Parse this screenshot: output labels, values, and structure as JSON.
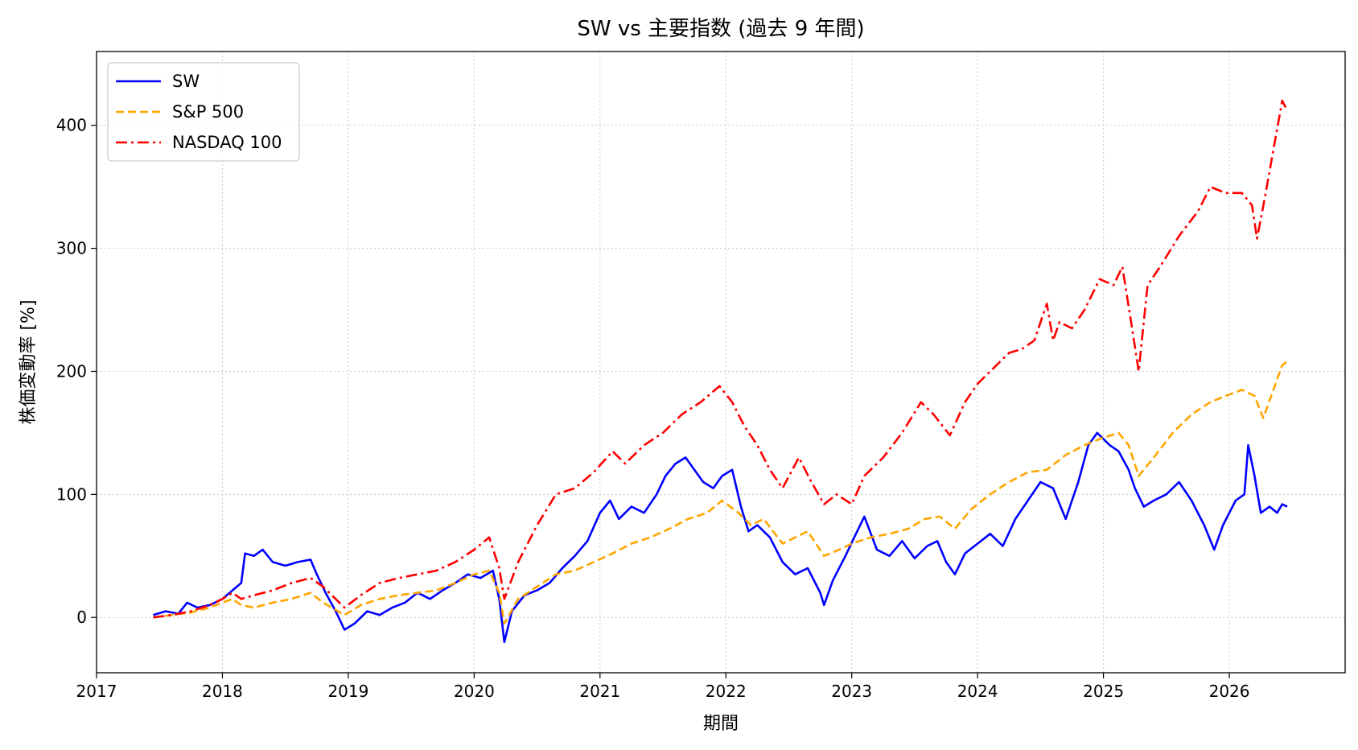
{
  "chart_data": {
    "type": "line",
    "title": "SW vs 主要指数 (過去 9 年間)",
    "xlabel": "期間",
    "ylabel": "株価変動率 [%]",
    "xlim": [
      2017.0,
      2026.92
    ],
    "ylim": [
      -45,
      460
    ],
    "x_ticks": [
      2017,
      2018,
      2019,
      2020,
      2021,
      2022,
      2023,
      2024,
      2025,
      2026
    ],
    "x_tick_labels": [
      "2017",
      "2018",
      "2019",
      "2020",
      "2021",
      "2022",
      "2023",
      "2024",
      "2025",
      "2026"
    ],
    "y_ticks": [
      0,
      100,
      200,
      300,
      400
    ],
    "y_tick_labels": [
      "0",
      "100",
      "200",
      "300",
      "400"
    ],
    "grid": true,
    "legend_position": "top-left",
    "series": [
      {
        "name": "SW",
        "color": "#0000ff",
        "dash": "solid",
        "points": [
          [
            2017.45,
            2
          ],
          [
            2017.55,
            5
          ],
          [
            2017.65,
            3
          ],
          [
            2017.72,
            12
          ],
          [
            2017.8,
            8
          ],
          [
            2017.9,
            10
          ],
          [
            2018.0,
            15
          ],
          [
            2018.08,
            22
          ],
          [
            2018.15,
            28
          ],
          [
            2018.18,
            52
          ],
          [
            2018.25,
            50
          ],
          [
            2018.32,
            55
          ],
          [
            2018.4,
            45
          ],
          [
            2018.5,
            42
          ],
          [
            2018.6,
            45
          ],
          [
            2018.7,
            47
          ],
          [
            2018.75,
            35
          ],
          [
            2018.82,
            20
          ],
          [
            2018.9,
            5
          ],
          [
            2018.97,
            -10
          ],
          [
            2019.05,
            -5
          ],
          [
            2019.15,
            5
          ],
          [
            2019.25,
            2
          ],
          [
            2019.35,
            8
          ],
          [
            2019.45,
            12
          ],
          [
            2019.55,
            20
          ],
          [
            2019.65,
            15
          ],
          [
            2019.75,
            22
          ],
          [
            2019.85,
            28
          ],
          [
            2019.95,
            35
          ],
          [
            2020.05,
            32
          ],
          [
            2020.15,
            38
          ],
          [
            2020.2,
            15
          ],
          [
            2020.24,
            -20
          ],
          [
            2020.3,
            5
          ],
          [
            2020.4,
            18
          ],
          [
            2020.5,
            22
          ],
          [
            2020.6,
            28
          ],
          [
            2020.7,
            40
          ],
          [
            2020.8,
            50
          ],
          [
            2020.9,
            62
          ],
          [
            2021.0,
            85
          ],
          [
            2021.08,
            95
          ],
          [
            2021.15,
            80
          ],
          [
            2021.25,
            90
          ],
          [
            2021.35,
            85
          ],
          [
            2021.45,
            100
          ],
          [
            2021.52,
            115
          ],
          [
            2021.6,
            125
          ],
          [
            2021.68,
            130
          ],
          [
            2021.75,
            120
          ],
          [
            2021.82,
            110
          ],
          [
            2021.9,
            105
          ],
          [
            2021.97,
            115
          ],
          [
            2022.05,
            120
          ],
          [
            2022.12,
            90
          ],
          [
            2022.18,
            70
          ],
          [
            2022.25,
            75
          ],
          [
            2022.35,
            65
          ],
          [
            2022.45,
            45
          ],
          [
            2022.55,
            35
          ],
          [
            2022.65,
            40
          ],
          [
            2022.75,
            20
          ],
          [
            2022.78,
            10
          ],
          [
            2022.85,
            30
          ],
          [
            2022.95,
            50
          ],
          [
            2023.02,
            65
          ],
          [
            2023.1,
            82
          ],
          [
            2023.2,
            55
          ],
          [
            2023.3,
            50
          ],
          [
            2023.4,
            62
          ],
          [
            2023.5,
            48
          ],
          [
            2023.6,
            58
          ],
          [
            2023.68,
            62
          ],
          [
            2023.75,
            45
          ],
          [
            2023.82,
            35
          ],
          [
            2023.9,
            52
          ],
          [
            2024.0,
            60
          ],
          [
            2024.1,
            68
          ],
          [
            2024.2,
            58
          ],
          [
            2024.3,
            80
          ],
          [
            2024.4,
            95
          ],
          [
            2024.5,
            110
          ],
          [
            2024.6,
            105
          ],
          [
            2024.7,
            80
          ],
          [
            2024.8,
            110
          ],
          [
            2024.88,
            140
          ],
          [
            2024.95,
            150
          ],
          [
            2025.05,
            140
          ],
          [
            2025.12,
            135
          ],
          [
            2025.2,
            120
          ],
          [
            2025.25,
            105
          ],
          [
            2025.32,
            90
          ],
          [
            2025.4,
            95
          ],
          [
            2025.5,
            100
          ],
          [
            2025.6,
            110
          ],
          [
            2025.7,
            95
          ],
          [
            2025.8,
            75
          ],
          [
            2025.88,
            55
          ],
          [
            2025.95,
            75
          ],
          [
            2026.05,
            95
          ],
          [
            2026.12,
            100
          ],
          [
            2026.15,
            140
          ],
          [
            2026.2,
            115
          ],
          [
            2026.25,
            85
          ],
          [
            2026.32,
            90
          ],
          [
            2026.38,
            85
          ],
          [
            2026.42,
            92
          ],
          [
            2026.46,
            90
          ]
        ]
      },
      {
        "name": "S&P 500",
        "color": "#ffa500",
        "dash": "10,5",
        "points": [
          [
            2017.45,
            0
          ],
          [
            2017.6,
            2
          ],
          [
            2017.75,
            4
          ],
          [
            2017.9,
            8
          ],
          [
            2018.0,
            12
          ],
          [
            2018.08,
            15
          ],
          [
            2018.15,
            10
          ],
          [
            2018.25,
            8
          ],
          [
            2018.4,
            12
          ],
          [
            2018.55,
            15
          ],
          [
            2018.7,
            20
          ],
          [
            2018.8,
            12
          ],
          [
            2018.97,
            2
          ],
          [
            2019.1,
            10
          ],
          [
            2019.25,
            15
          ],
          [
            2019.4,
            18
          ],
          [
            2019.55,
            20
          ],
          [
            2019.7,
            22
          ],
          [
            2019.85,
            28
          ],
          [
            2020.0,
            35
          ],
          [
            2020.12,
            38
          ],
          [
            2020.2,
            20
          ],
          [
            2020.24,
            -5
          ],
          [
            2020.35,
            15
          ],
          [
            2020.5,
            25
          ],
          [
            2020.65,
            35
          ],
          [
            2020.8,
            38
          ],
          [
            2020.95,
            45
          ],
          [
            2021.1,
            52
          ],
          [
            2021.25,
            60
          ],
          [
            2021.4,
            65
          ],
          [
            2021.55,
            72
          ],
          [
            2021.7,
            80
          ],
          [
            2021.85,
            85
          ],
          [
            2021.97,
            95
          ],
          [
            2022.1,
            85
          ],
          [
            2022.2,
            75
          ],
          [
            2022.3,
            80
          ],
          [
            2022.45,
            60
          ],
          [
            2022.55,
            65
          ],
          [
            2022.65,
            70
          ],
          [
            2022.78,
            50
          ],
          [
            2022.9,
            55
          ],
          [
            2023.0,
            60
          ],
          [
            2023.15,
            65
          ],
          [
            2023.3,
            68
          ],
          [
            2023.45,
            72
          ],
          [
            2023.58,
            80
          ],
          [
            2023.7,
            82
          ],
          [
            2023.82,
            72
          ],
          [
            2023.95,
            88
          ],
          [
            2024.1,
            100
          ],
          [
            2024.25,
            110
          ],
          [
            2024.4,
            118
          ],
          [
            2024.55,
            120
          ],
          [
            2024.7,
            132
          ],
          [
            2024.85,
            140
          ],
          [
            2024.97,
            145
          ],
          [
            2025.12,
            150
          ],
          [
            2025.2,
            140
          ],
          [
            2025.28,
            115
          ],
          [
            2025.4,
            130
          ],
          [
            2025.55,
            150
          ],
          [
            2025.7,
            165
          ],
          [
            2025.85,
            175
          ],
          [
            2025.97,
            180
          ],
          [
            2026.1,
            185
          ],
          [
            2026.2,
            180
          ],
          [
            2026.27,
            162
          ],
          [
            2026.35,
            185
          ],
          [
            2026.42,
            205
          ],
          [
            2026.46,
            208
          ]
        ]
      },
      {
        "name": "NASDAQ 100",
        "color": "#ff0000",
        "dash": "14,5,3,5",
        "points": [
          [
            2017.45,
            0
          ],
          [
            2017.6,
            2
          ],
          [
            2017.75,
            5
          ],
          [
            2017.9,
            10
          ],
          [
            2018.0,
            15
          ],
          [
            2018.08,
            20
          ],
          [
            2018.15,
            15
          ],
          [
            2018.25,
            18
          ],
          [
            2018.4,
            22
          ],
          [
            2018.55,
            28
          ],
          [
            2018.7,
            32
          ],
          [
            2018.8,
            25
          ],
          [
            2018.97,
            8
          ],
          [
            2019.1,
            18
          ],
          [
            2019.25,
            28
          ],
          [
            2019.4,
            32
          ],
          [
            2019.55,
            35
          ],
          [
            2019.7,
            38
          ],
          [
            2019.85,
            45
          ],
          [
            2020.0,
            55
          ],
          [
            2020.12,
            65
          ],
          [
            2020.2,
            40
          ],
          [
            2020.24,
            15
          ],
          [
            2020.35,
            45
          ],
          [
            2020.5,
            75
          ],
          [
            2020.65,
            100
          ],
          [
            2020.8,
            105
          ],
          [
            2020.95,
            118
          ],
          [
            2021.1,
            135
          ],
          [
            2021.2,
            125
          ],
          [
            2021.35,
            140
          ],
          [
            2021.5,
            150
          ],
          [
            2021.65,
            165
          ],
          [
            2021.8,
            175
          ],
          [
            2021.95,
            188
          ],
          [
            2022.05,
            175
          ],
          [
            2022.15,
            155
          ],
          [
            2022.25,
            140
          ],
          [
            2022.35,
            120
          ],
          [
            2022.45,
            105
          ],
          [
            2022.58,
            130
          ],
          [
            2022.68,
            110
          ],
          [
            2022.78,
            92
          ],
          [
            2022.88,
            100
          ],
          [
            2023.0,
            92
          ],
          [
            2023.1,
            115
          ],
          [
            2023.25,
            130
          ],
          [
            2023.4,
            150
          ],
          [
            2023.55,
            175
          ],
          [
            2023.65,
            165
          ],
          [
            2023.78,
            148
          ],
          [
            2023.9,
            175
          ],
          [
            2024.0,
            190
          ],
          [
            2024.1,
            200
          ],
          [
            2024.25,
            215
          ],
          [
            2024.35,
            218
          ],
          [
            2024.45,
            225
          ],
          [
            2024.55,
            255
          ],
          [
            2024.6,
            225
          ],
          [
            2024.65,
            240
          ],
          [
            2024.75,
            235
          ],
          [
            2024.85,
            250
          ],
          [
            2024.97,
            275
          ],
          [
            2025.08,
            270
          ],
          [
            2025.15,
            285
          ],
          [
            2025.22,
            240
          ],
          [
            2025.28,
            200
          ],
          [
            2025.35,
            270
          ],
          [
            2025.45,
            285
          ],
          [
            2025.6,
            310
          ],
          [
            2025.75,
            330
          ],
          [
            2025.85,
            350
          ],
          [
            2025.97,
            345
          ],
          [
            2026.1,
            345
          ],
          [
            2026.18,
            335
          ],
          [
            2026.22,
            308
          ],
          [
            2026.28,
            340
          ],
          [
            2026.35,
            380
          ],
          [
            2026.42,
            420
          ],
          [
            2026.46,
            412
          ]
        ]
      }
    ]
  }
}
